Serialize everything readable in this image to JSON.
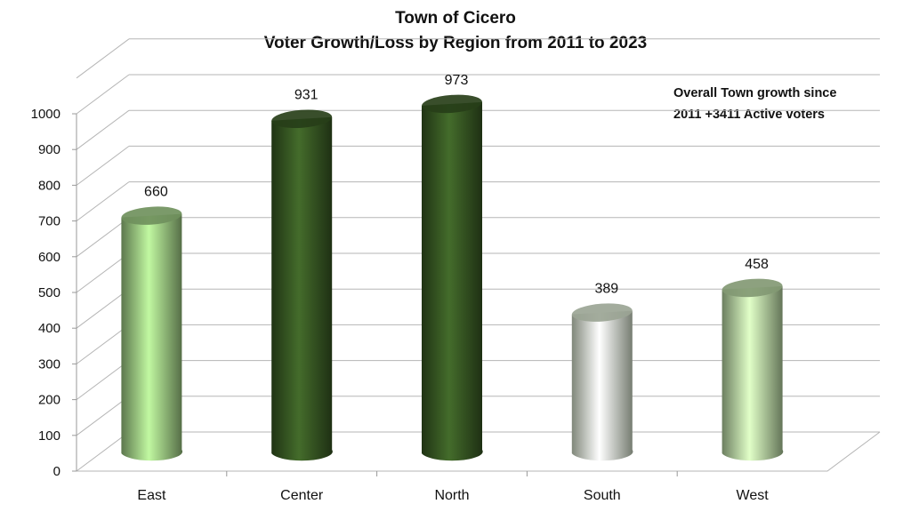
{
  "chart_data": {
    "type": "bar",
    "title": "Town of Cicero",
    "subtitle": "Voter Growth/Loss by Region from 2011 to 2023",
    "annotation_line1": "Overall Town growth since",
    "annotation_line2": "2011 +3411 Active voters",
    "categories": [
      "East",
      "Center",
      "North",
      "South",
      "West"
    ],
    "values": [
      660,
      931,
      973,
      389,
      458
    ],
    "colors": [
      "#a8d88c",
      "#3b5e25",
      "#3b5e25",
      "#e8f6de",
      "#c4e6ae"
    ],
    "ylim": [
      0,
      1000
    ],
    "yticks": [
      0,
      100,
      200,
      300,
      400,
      500,
      600,
      700,
      800,
      900,
      1000
    ],
    "xlabel": "",
    "ylabel": "",
    "grid": true,
    "style": "3d-cylinder"
  }
}
